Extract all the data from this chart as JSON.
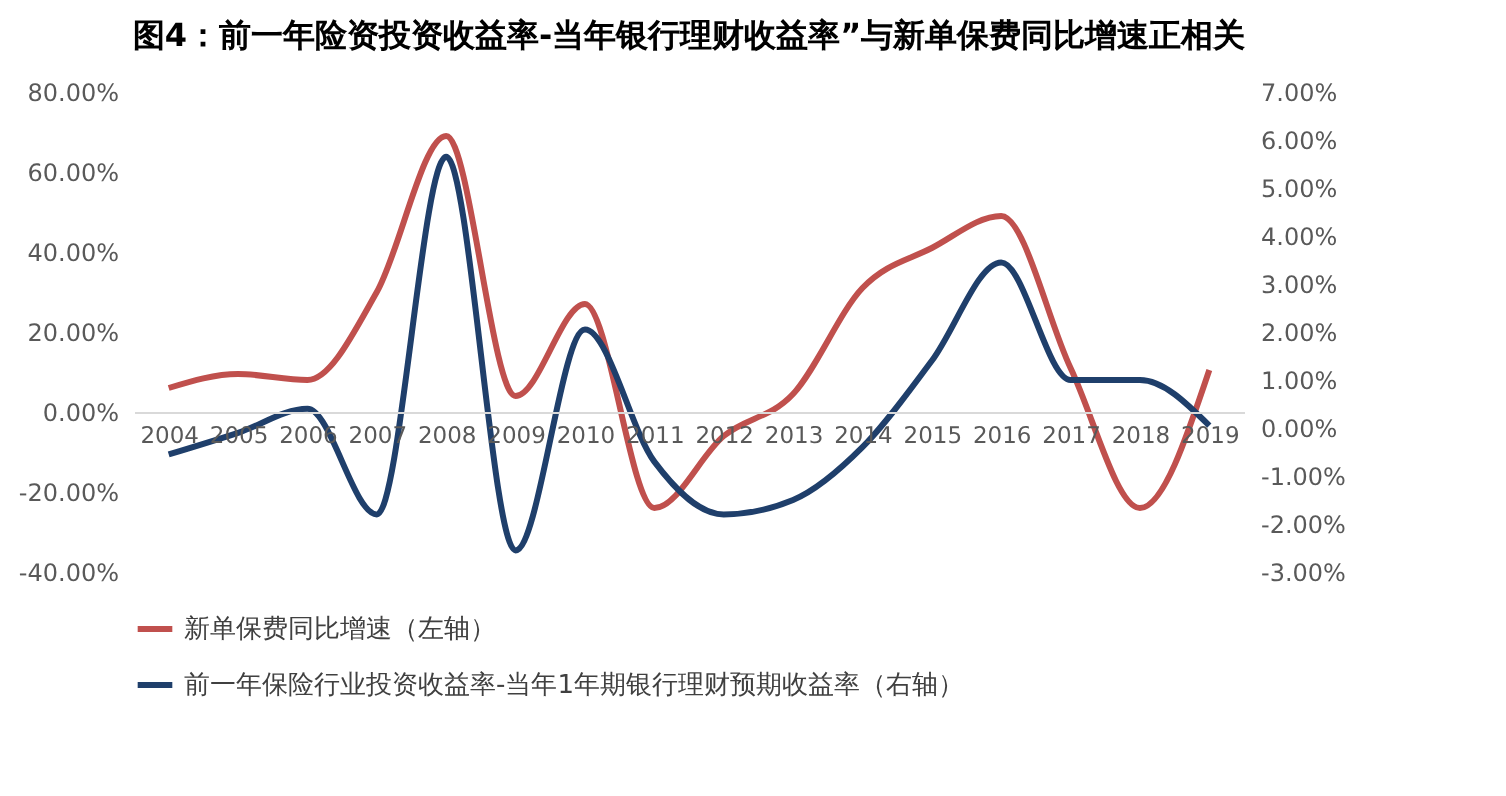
{
  "chart_data": {
    "type": "line",
    "title": "图4：前一年险资投资收益率-当年银行理财收益率”与新单保费同比增速正相关",
    "categories": [
      "2004",
      "2005",
      "2006",
      "2007",
      "2008",
      "2009",
      "2010",
      "2011",
      "2012",
      "2013",
      "2014",
      "2015",
      "2016",
      "2017",
      "2018",
      "2019"
    ],
    "series": [
      {
        "name": "新单保费同比增速（左轴）",
        "color": "#c0504d",
        "values": [
          6,
          9.5,
          8,
          30,
          69,
          4,
          27,
          -24,
          -6,
          4.5,
          31,
          41,
          49,
          11,
          -24,
          10.5
        ]
      },
      {
        "name": "前一年保险行业投资收益率-当年1年期银行理财预期收益率（右轴）",
        "color": "#1f3f6b",
        "axis": "y2",
        "values": [
          -0.55,
          -0.1,
          0.4,
          -1.8,
          5.65,
          -2.55,
          2.05,
          -0.7,
          -1.8,
          -1.5,
          -0.4,
          1.4,
          3.45,
          1.0,
          1.0,
          0.05
        ]
      }
    ],
    "ylim": [
      -40,
      80
    ],
    "yticks": [
      {
        "value": -40,
        "label": "-40.00%"
      },
      {
        "value": -20,
        "label": "-20.00%"
      },
      {
        "value": 0,
        "label": "0.00%"
      },
      {
        "value": 20,
        "label": "20.00%"
      },
      {
        "value": 40,
        "label": "40.00%"
      },
      {
        "value": 60,
        "label": "60.00%"
      },
      {
        "value": 80,
        "label": "80.00%"
      }
    ],
    "y2lim": [
      -3,
      7
    ],
    "y2ticks": [
      {
        "value": -3,
        "label": "-3.00%"
      },
      {
        "value": -2,
        "label": "-2.00%"
      },
      {
        "value": -1,
        "label": "-1.00%"
      },
      {
        "value": 0,
        "label": "0.00%"
      },
      {
        "value": 1,
        "label": "1.00%"
      },
      {
        "value": 2,
        "label": "2.00%"
      },
      {
        "value": 3,
        "label": "3.00%"
      },
      {
        "value": 4,
        "label": "4.00%"
      },
      {
        "value": 5,
        "label": "5.00%"
      },
      {
        "value": 6,
        "label": "6.00%"
      },
      {
        "value": 7,
        "label": "7.00%"
      }
    ],
    "grid": false,
    "legend": "bottom left",
    "line_style": "solid",
    "marker": "none"
  }
}
